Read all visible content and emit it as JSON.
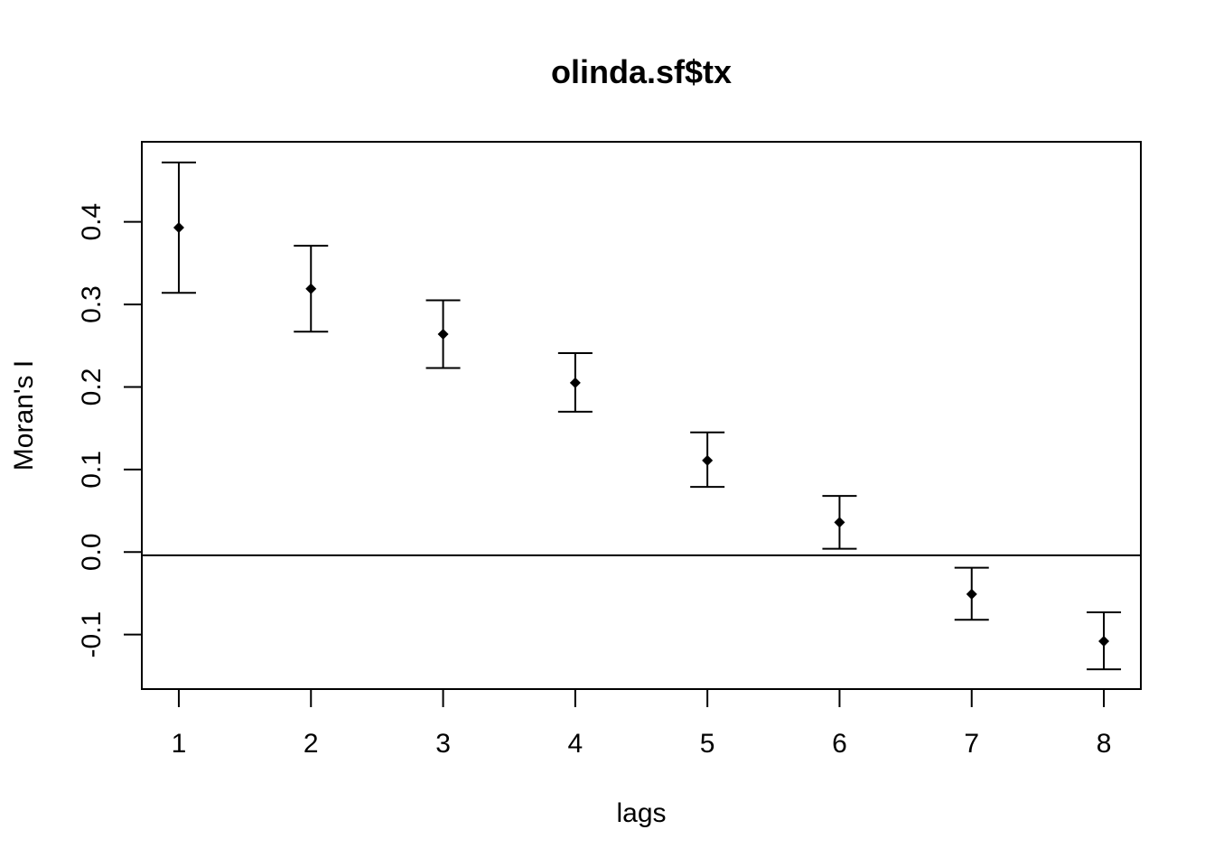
{
  "chart_data": {
    "type": "scatter",
    "title": "olinda.sf$tx",
    "xlabel": "lags",
    "ylabel": "Moran's  I",
    "x": [
      1,
      2,
      3,
      4,
      5,
      6,
      7,
      8
    ],
    "x_tick_labels": [
      "1",
      "2",
      "3",
      "4",
      "5",
      "6",
      "7",
      "8"
    ],
    "y_ticks": [
      -0.1,
      0.0,
      0.1,
      0.2,
      0.3,
      0.4
    ],
    "y_tick_labels": [
      "-0.1",
      "0.0",
      "0.1",
      "0.2",
      "0.3",
      "0.4"
    ],
    "values": [
      0.393,
      0.319,
      0.264,
      0.205,
      0.111,
      0.036,
      -0.051,
      -0.108
    ],
    "error_upper": [
      0.472,
      0.371,
      0.305,
      0.241,
      0.145,
      0.068,
      -0.019,
      -0.073
    ],
    "error_lower": [
      0.314,
      0.267,
      0.223,
      0.17,
      0.079,
      0.004,
      -0.082,
      -0.142
    ],
    "reference_line_y": -0.004,
    "xlim": [
      0.72,
      8.28
    ],
    "ylim": [
      -0.166,
      0.497
    ],
    "grid": false,
    "marker": "diamond"
  }
}
